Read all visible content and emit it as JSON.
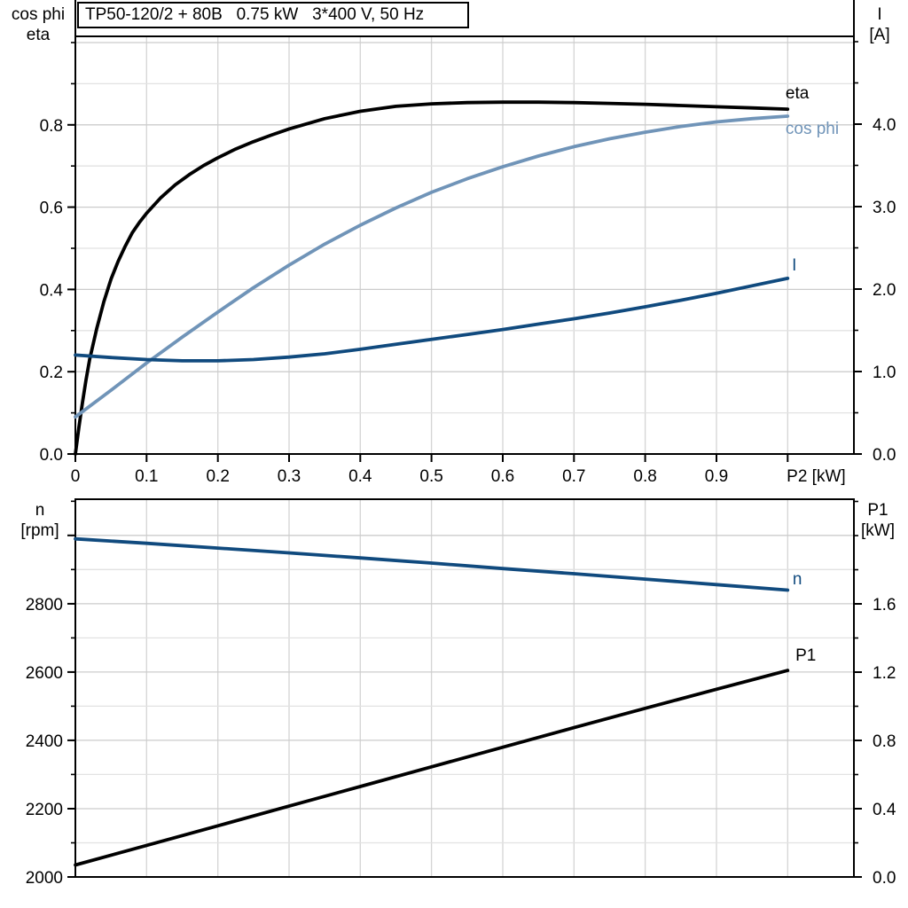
{
  "colors": {
    "black": "#000000",
    "steel_blue": "#7094b8",
    "dark_blue": "#104a7e",
    "grid_minor": "#e2e2e2",
    "grid_major": "#cccccc",
    "grid_vertical": "#d4d4d4",
    "frame": "#000000"
  },
  "chart_data": [
    {
      "type": "line",
      "title": "TP50-120/2 + 80B   0.75 kW   3*400 V, 50 Hz",
      "x_axis": {
        "min": 0,
        "max": 1.093,
        "unit_label": "P2 [kW]",
        "unit_label_x": 1.04,
        "grid": {
          "step": 0.1,
          "max": 1.0
        },
        "ticks": [
          {
            "v": 0.0,
            "label": "0"
          },
          {
            "v": 0.1,
            "label": "0.1"
          },
          {
            "v": 0.2,
            "label": "0.2"
          },
          {
            "v": 0.3,
            "label": "0.3"
          },
          {
            "v": 0.4,
            "label": "0.4"
          },
          {
            "v": 0.5,
            "label": "0.5"
          },
          {
            "v": 0.6,
            "label": "0.6"
          },
          {
            "v": 0.7,
            "label": "0.7"
          },
          {
            "v": 0.8,
            "label": "0.8"
          },
          {
            "v": 0.9,
            "label": "0.9"
          },
          {
            "v": 1.0,
            "label": ""
          }
        ]
      },
      "left_axis": {
        "title_lines": [
          "cos phi",
          "eta"
        ],
        "min": 0,
        "max": 1.015,
        "grid": {
          "step": 0.1,
          "major_step": 0.2,
          "max": 1.0
        },
        "minor_tick_step": 0.1,
        "ticks": [
          {
            "v": 0.0,
            "label": "0.0"
          },
          {
            "v": 0.2,
            "label": "0.2"
          },
          {
            "v": 0.4,
            "label": "0.4"
          },
          {
            "v": 0.6,
            "label": "0.6"
          },
          {
            "v": 0.8,
            "label": "0.8"
          }
        ]
      },
      "right_axis": {
        "title_lines": [
          "I",
          "[A]"
        ],
        "min": 0,
        "max": 5.065,
        "minor_tick_step": 0.5,
        "ticks": [
          {
            "v": 0.0,
            "label": "0.0"
          },
          {
            "v": 1.0,
            "label": "1.0"
          },
          {
            "v": 2.0,
            "label": "2.0"
          },
          {
            "v": 3.0,
            "label": "3.0"
          },
          {
            "v": 4.0,
            "label": "4.0"
          }
        ]
      },
      "series": [
        {
          "name": "eta",
          "color": "#000000",
          "axis": "left",
          "label": {
            "text": "eta",
            "x": 0.997,
            "y": 0.864
          },
          "points": [
            [
              0,
              0
            ],
            [
              0.005,
              0.065
            ],
            [
              0.01,
              0.125
            ],
            [
              0.015,
              0.18
            ],
            [
              0.02,
              0.23
            ],
            [
              0.03,
              0.305
            ],
            [
              0.04,
              0.37
            ],
            [
              0.05,
              0.425
            ],
            [
              0.06,
              0.468
            ],
            [
              0.07,
              0.505
            ],
            [
              0.08,
              0.538
            ],
            [
              0.09,
              0.563
            ],
            [
              0.1,
              0.585
            ],
            [
              0.12,
              0.623
            ],
            [
              0.14,
              0.654
            ],
            [
              0.16,
              0.679
            ],
            [
              0.18,
              0.701
            ],
            [
              0.2,
              0.72
            ],
            [
              0.225,
              0.741
            ],
            [
              0.25,
              0.759
            ],
            [
              0.275,
              0.775
            ],
            [
              0.3,
              0.79
            ],
            [
              0.35,
              0.815
            ],
            [
              0.4,
              0.833
            ],
            [
              0.45,
              0.845
            ],
            [
              0.5,
              0.851
            ],
            [
              0.55,
              0.854
            ],
            [
              0.6,
              0.855
            ],
            [
              0.65,
              0.855
            ],
            [
              0.7,
              0.854
            ],
            [
              0.75,
              0.852
            ],
            [
              0.8,
              0.85
            ],
            [
              0.85,
              0.847
            ],
            [
              0.9,
              0.844
            ],
            [
              0.95,
              0.841
            ],
            [
              1.0,
              0.838
            ]
          ]
        },
        {
          "name": "cos phi",
          "color": "#7094b8",
          "axis": "left",
          "label": {
            "text": "cos phi",
            "x": 0.997,
            "y": 0.778
          },
          "points": [
            [
              0,
              0.09
            ],
            [
              0.05,
              0.155
            ],
            [
              0.1,
              0.221
            ],
            [
              0.15,
              0.284
            ],
            [
              0.2,
              0.345
            ],
            [
              0.25,
              0.404
            ],
            [
              0.3,
              0.459
            ],
            [
              0.35,
              0.51
            ],
            [
              0.4,
              0.556
            ],
            [
              0.45,
              0.598
            ],
            [
              0.5,
              0.636
            ],
            [
              0.55,
              0.669
            ],
            [
              0.6,
              0.698
            ],
            [
              0.65,
              0.724
            ],
            [
              0.7,
              0.747
            ],
            [
              0.75,
              0.766
            ],
            [
              0.8,
              0.782
            ],
            [
              0.85,
              0.796
            ],
            [
              0.9,
              0.807
            ],
            [
              0.95,
              0.815
            ],
            [
              1.0,
              0.821
            ]
          ]
        },
        {
          "name": "I",
          "color": "#104a7e",
          "axis": "right",
          "label": {
            "text": "I",
            "x": 1.006,
            "y": 2.226
          },
          "points": [
            [
              0,
              1.2
            ],
            [
              0.05,
              1.17
            ],
            [
              0.1,
              1.145
            ],
            [
              0.15,
              1.13
            ],
            [
              0.2,
              1.13
            ],
            [
              0.25,
              1.145
            ],
            [
              0.3,
              1.175
            ],
            [
              0.35,
              1.215
            ],
            [
              0.4,
              1.27
            ],
            [
              0.45,
              1.33
            ],
            [
              0.5,
              1.39
            ],
            [
              0.55,
              1.45
            ],
            [
              0.6,
              1.51
            ],
            [
              0.65,
              1.575
            ],
            [
              0.7,
              1.64
            ],
            [
              0.75,
              1.71
            ],
            [
              0.8,
              1.785
            ],
            [
              0.85,
              1.865
            ],
            [
              0.9,
              1.95
            ],
            [
              0.95,
              2.04
            ],
            [
              1.0,
              2.13
            ]
          ]
        }
      ]
    },
    {
      "type": "line",
      "title": "",
      "x_axis": {
        "min": 0,
        "max": 1.093,
        "unit_label": "",
        "unit_label_x": 1.04,
        "grid": {
          "step": 0.1,
          "max": 1.0
        },
        "ticks": []
      },
      "left_axis": {
        "title_lines": [
          "n",
          "[rpm]"
        ],
        "min": 2000,
        "max": 3106,
        "grid": {
          "step": 100,
          "major_step": 200,
          "max": 3000
        },
        "minor_tick_step": 100,
        "ticks": [
          {
            "v": 2000,
            "label": "2000"
          },
          {
            "v": 2200,
            "label": "2200"
          },
          {
            "v": 2400,
            "label": "2400"
          },
          {
            "v": 2600,
            "label": "2600"
          },
          {
            "v": 2800,
            "label": "2800"
          },
          {
            "v": 3000,
            "label": ""
          }
        ]
      },
      "right_axis": {
        "title_lines": [
          "P1",
          "[kW]"
        ],
        "min": 0,
        "max": 2.213,
        "minor_tick_step": 0.2,
        "ticks": [
          {
            "v": 0.0,
            "label": "0.0"
          },
          {
            "v": 0.4,
            "label": "0.4"
          },
          {
            "v": 0.8,
            "label": "0.8"
          },
          {
            "v": 1.2,
            "label": "1.2"
          },
          {
            "v": 1.6,
            "label": "1.6"
          }
        ]
      },
      "series": [
        {
          "name": "n",
          "color": "#104a7e",
          "axis": "left",
          "label": {
            "text": "n",
            "x": 1.007,
            "y": 2857
          },
          "points": [
            [
              0,
              2990
            ],
            [
              0.1,
              2977
            ],
            [
              0.2,
              2963
            ],
            [
              0.3,
              2949
            ],
            [
              0.4,
              2934
            ],
            [
              0.5,
              2919
            ],
            [
              0.6,
              2903
            ],
            [
              0.7,
              2888
            ],
            [
              0.8,
              2872
            ],
            [
              0.9,
              2856
            ],
            [
              1.0,
              2840
            ]
          ]
        },
        {
          "name": "P1",
          "color": "#000000",
          "axis": "right",
          "label": {
            "text": "P1",
            "x": 1.011,
            "y": 1.268
          },
          "points": [
            [
              0,
              0.07
            ],
            [
              0.1,
              0.185
            ],
            [
              0.2,
              0.3
            ],
            [
              0.3,
              0.415
            ],
            [
              0.4,
              0.53
            ],
            [
              0.5,
              0.645
            ],
            [
              0.6,
              0.76
            ],
            [
              0.7,
              0.875
            ],
            [
              0.8,
              0.988
            ],
            [
              0.9,
              1.1
            ],
            [
              1.0,
              1.21
            ]
          ]
        }
      ]
    }
  ]
}
